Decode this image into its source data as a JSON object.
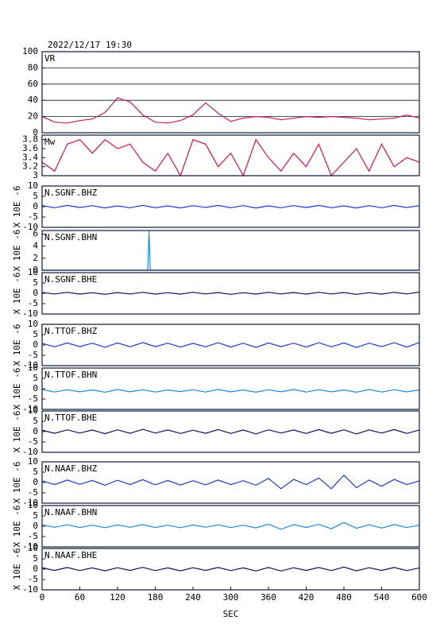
{
  "chart_data": [
    {
      "type": "line",
      "title": "2022/12/17 19:30",
      "label": "VR",
      "ylim": [
        0,
        100
      ],
      "yticks": [
        0,
        20,
        40,
        60,
        80,
        100
      ],
      "grid": true,
      "xlim": [
        0,
        600
      ],
      "x": [
        0,
        20,
        40,
        60,
        80,
        100,
        120,
        140,
        160,
        180,
        200,
        220,
        240,
        260,
        280,
        300,
        320,
        340,
        360,
        380,
        400,
        420,
        440,
        460,
        480,
        500,
        520,
        540,
        560,
        580,
        600
      ],
      "series": [
        {
          "color": "#cc1f4f",
          "values": [
            20,
            13,
            12,
            15,
            17,
            25,
            43,
            38,
            22,
            13,
            12,
            15,
            22,
            37,
            24,
            14,
            18,
            20,
            19,
            16,
            18,
            20,
            19,
            20,
            19,
            18,
            16,
            17,
            18,
            22,
            18
          ]
        }
      ]
    },
    {
      "type": "line",
      "label": "Mw",
      "ylim": [
        3.0,
        3.9
      ],
      "yticks": [
        3.0,
        3.2,
        3.4,
        3.6,
        3.8
      ],
      "grid": false,
      "xlim": [
        0,
        600
      ],
      "x": [
        0,
        20,
        40,
        60,
        80,
        100,
        120,
        140,
        160,
        180,
        200,
        220,
        240,
        260,
        280,
        300,
        320,
        340,
        360,
        380,
        400,
        420,
        440,
        460,
        480,
        500,
        520,
        540,
        560,
        580,
        600
      ],
      "series": [
        {
          "color": "#dd1144",
          "values": [
            3.3,
            3.1,
            3.7,
            3.8,
            3.5,
            3.8,
            3.6,
            3.7,
            3.3,
            3.1,
            3.5,
            3.0,
            3.8,
            3.7,
            3.2,
            3.5,
            3.0,
            3.8,
            3.4,
            3.1,
            3.5,
            3.2,
            3.7,
            3.0,
            3.3,
            3.6,
            3.1,
            3.7,
            3.2,
            3.4,
            3.3
          ]
        }
      ]
    },
    {
      "type": "line",
      "label": "N.SGNF.BHZ",
      "ylabel": "X 10E -6",
      "ylim": [
        -10,
        10
      ],
      "yticks": [
        -10,
        -5,
        0,
        5,
        10
      ],
      "grid": false,
      "xlim": [
        0,
        600
      ],
      "x": [
        0,
        20,
        40,
        60,
        80,
        100,
        120,
        140,
        160,
        180,
        200,
        220,
        240,
        260,
        280,
        300,
        320,
        340,
        360,
        380,
        400,
        420,
        440,
        460,
        480,
        500,
        520,
        540,
        560,
        580,
        600
      ],
      "series": [
        {
          "color": "#1a3ccf",
          "values": [
            0.5,
            -0.5,
            0.6,
            -0.4,
            0.5,
            -0.6,
            0.4,
            -0.5,
            0.6,
            -0.5,
            0.4,
            -0.6,
            0.5,
            -0.4,
            0.6,
            -0.5,
            0.5,
            -0.6,
            0.4,
            -0.5,
            0.5,
            -0.4,
            0.6,
            -0.5,
            0.4,
            -0.6,
            0.5,
            -0.5,
            0.6,
            -0.4,
            0.5
          ]
        }
      ]
    },
    {
      "type": "line",
      "label": "N.SGNF.BHN",
      "ylabel": "X 10E -6",
      "ylim": [
        0,
        6.6
      ],
      "yticks": [
        0,
        2,
        4,
        6
      ],
      "grid": false,
      "xlim": [
        0,
        600
      ],
      "x": [
        0,
        168,
        170,
        172,
        600
      ],
      "series": [
        {
          "color": "#2288dd",
          "values": [
            0,
            0,
            6.6,
            0,
            0
          ]
        }
      ]
    },
    {
      "type": "line",
      "label": "N.SGNF.BHE",
      "ylabel": "X 10E -6",
      "ylim": [
        -10,
        10
      ],
      "yticks": [
        -10,
        -5,
        0,
        5,
        10
      ],
      "grid": false,
      "xlim": [
        0,
        600
      ],
      "x": [
        0,
        20,
        40,
        60,
        80,
        100,
        120,
        140,
        160,
        180,
        200,
        220,
        240,
        260,
        280,
        300,
        320,
        340,
        360,
        380,
        400,
        420,
        440,
        460,
        480,
        500,
        520,
        540,
        560,
        580,
        600
      ],
      "series": [
        {
          "color": "#101060",
          "values": [
            0.4,
            -0.3,
            0.5,
            -0.4,
            0.3,
            -0.5,
            0.4,
            -0.3,
            0.5,
            -0.4,
            0.3,
            -0.4,
            0.5,
            -0.3,
            0.4,
            -0.5,
            0.3,
            -0.4,
            0.5,
            -0.3,
            0.4,
            -0.4,
            0.5,
            -0.3,
            0.4,
            -0.5,
            0.3,
            -0.4,
            0.5,
            -0.3,
            0.6
          ]
        }
      ]
    },
    {
      "type": "line",
      "label": "N.TTOF.BHZ",
      "ylabel": "X 10E -6",
      "ylim": [
        -10,
        10
      ],
      "yticks": [
        -10,
        -5,
        0,
        5,
        10
      ],
      "grid": false,
      "xlim": [
        0,
        600
      ],
      "x": [
        0,
        20,
        40,
        60,
        80,
        100,
        120,
        140,
        160,
        180,
        200,
        220,
        240,
        260,
        280,
        300,
        320,
        340,
        360,
        380,
        400,
        420,
        440,
        460,
        480,
        500,
        520,
        540,
        560,
        580,
        600
      ],
      "series": [
        {
          "color": "#1a3ccf",
          "values": [
            0.8,
            -0.9,
            1.0,
            -0.8,
            0.9,
            -1.1,
            1.0,
            -0.9,
            1.2,
            -0.8,
            0.9,
            -1.0,
            0.8,
            -0.9,
            1.1,
            -1.0,
            0.9,
            -1.2,
            1.0,
            -0.8,
            0.9,
            -1.0,
            1.1,
            -0.9,
            1.0,
            -1.2,
            0.9,
            -0.8,
            1.1,
            -1.0,
            1.2
          ]
        }
      ]
    },
    {
      "type": "line",
      "label": "N.TTOF.BHN",
      "ylabel": "X 10E -6",
      "ylim": [
        -10,
        10
      ],
      "yticks": [
        -10,
        -5,
        0,
        5,
        10
      ],
      "grid": false,
      "xlim": [
        0,
        600
      ],
      "x": [
        0,
        20,
        40,
        60,
        80,
        100,
        120,
        140,
        160,
        180,
        200,
        220,
        240,
        260,
        280,
        300,
        320,
        340,
        360,
        380,
        400,
        420,
        440,
        460,
        480,
        500,
        520,
        540,
        560,
        580,
        600
      ],
      "series": [
        {
          "color": "#2288dd",
          "values": [
            -0.4,
            -1.6,
            -0.5,
            -1.5,
            -0.6,
            -1.7,
            -0.4,
            -1.5,
            -0.5,
            -1.6,
            -0.6,
            -1.4,
            -0.5,
            -1.6,
            -0.4,
            -1.5,
            -0.6,
            -1.7,
            -0.5,
            -1.5,
            -0.4,
            -1.6,
            -0.5,
            -1.5,
            -0.6,
            -1.7,
            -0.4,
            -1.6,
            -0.5,
            -1.5,
            -0.6
          ]
        }
      ]
    },
    {
      "type": "line",
      "label": "N.TTOF.BHE",
      "ylabel": "X 10E -6",
      "ylim": [
        -10,
        10
      ],
      "yticks": [
        -10,
        -5,
        0,
        5,
        10
      ],
      "grid": false,
      "xlim": [
        0,
        600
      ],
      "x": [
        0,
        20,
        40,
        60,
        80,
        100,
        120,
        140,
        160,
        180,
        200,
        220,
        240,
        260,
        280,
        300,
        320,
        340,
        360,
        380,
        400,
        420,
        440,
        460,
        480,
        500,
        520,
        540,
        560,
        580,
        600
      ],
      "series": [
        {
          "color": "#101060",
          "values": [
            0.7,
            -0.8,
            0.9,
            -0.7,
            0.8,
            -1.0,
            0.9,
            -0.8,
            1.1,
            -0.7,
            0.8,
            -0.9,
            0.7,
            -0.8,
            1.0,
            -0.9,
            0.8,
            -1.1,
            0.9,
            -0.7,
            0.8,
            -0.9,
            1.0,
            -0.8,
            0.9,
            -1.1,
            0.8,
            -0.7,
            1.0,
            -0.9,
            0.8
          ]
        }
      ]
    },
    {
      "type": "line",
      "label": "N.NAAF.BHZ",
      "ylabel": "X 10E -6",
      "ylim": [
        -10,
        10
      ],
      "yticks": [
        -10,
        -5,
        0,
        5,
        10
      ],
      "grid": false,
      "xlim": [
        0,
        600
      ],
      "x": [
        0,
        20,
        40,
        60,
        80,
        100,
        120,
        140,
        160,
        180,
        200,
        220,
        240,
        260,
        280,
        300,
        320,
        340,
        360,
        380,
        400,
        420,
        440,
        460,
        480,
        500,
        520,
        540,
        560,
        580,
        600
      ],
      "series": [
        {
          "color": "#1a3ccf",
          "values": [
            0.8,
            -1.0,
            1.2,
            -0.9,
            1.0,
            -1.3,
            1.1,
            -1.0,
            1.4,
            -1.1,
            1.0,
            -1.2,
            0.9,
            -1.1,
            1.2,
            -1.0,
            0.9,
            -1.3,
            2.0,
            -3.0,
            1.5,
            -1.0,
            2.2,
            -3.0,
            3.5,
            -2.5,
            1.2,
            -1.8,
            1.5,
            -1.0,
            0.8
          ]
        }
      ]
    },
    {
      "type": "line",
      "label": "N.NAAF.BHN",
      "ylabel": "X 10E -6",
      "ylim": [
        -10,
        10
      ],
      "yticks": [
        -10,
        -5,
        0,
        5,
        10
      ],
      "grid": false,
      "xlim": [
        0,
        600
      ],
      "x": [
        0,
        20,
        40,
        60,
        80,
        100,
        120,
        140,
        160,
        180,
        200,
        220,
        240,
        260,
        280,
        300,
        320,
        340,
        360,
        380,
        400,
        420,
        440,
        460,
        480,
        500,
        520,
        540,
        560,
        580,
        600
      ],
      "series": [
        {
          "color": "#2288dd",
          "values": [
            0.6,
            -0.5,
            0.7,
            -0.6,
            0.5,
            -0.7,
            0.6,
            -0.5,
            0.8,
            -0.6,
            0.5,
            -0.7,
            0.6,
            -0.5,
            0.7,
            -0.6,
            0.5,
            -0.8,
            1.0,
            -1.5,
            0.8,
            -0.6,
            0.9,
            -1.2,
            1.8,
            -1.0,
            0.7,
            -0.9,
            0.8,
            -0.6,
            0.5
          ]
        }
      ]
    },
    {
      "type": "line",
      "label": "N.NAAF.BHE",
      "ylabel": "X 10E -6",
      "ylim": [
        -10,
        10
      ],
      "yticks": [
        -10,
        -5,
        0,
        5,
        10
      ],
      "grid": false,
      "xlim": [
        0,
        600
      ],
      "xticks": [
        0,
        60,
        120,
        180,
        240,
        300,
        360,
        420,
        480,
        540,
        600
      ],
      "xlabel": "SEC",
      "x": [
        0,
        20,
        40,
        60,
        80,
        100,
        120,
        140,
        160,
        180,
        200,
        220,
        240,
        260,
        280,
        300,
        320,
        340,
        360,
        380,
        400,
        420,
        440,
        460,
        480,
        500,
        520,
        540,
        560,
        580,
        600
      ],
      "series": [
        {
          "color": "#101060",
          "values": [
            0.7,
            -0.6,
            0.8,
            -0.7,
            0.6,
            -0.8,
            0.7,
            -0.6,
            0.9,
            -0.7,
            0.6,
            -0.8,
            0.7,
            -0.6,
            0.8,
            -0.7,
            0.6,
            -0.9,
            0.8,
            -0.9,
            0.7,
            -0.6,
            0.8,
            -0.7,
            1.0,
            -0.8,
            0.7,
            -0.6,
            0.8,
            -0.7,
            0.6
          ]
        }
      ]
    }
  ]
}
